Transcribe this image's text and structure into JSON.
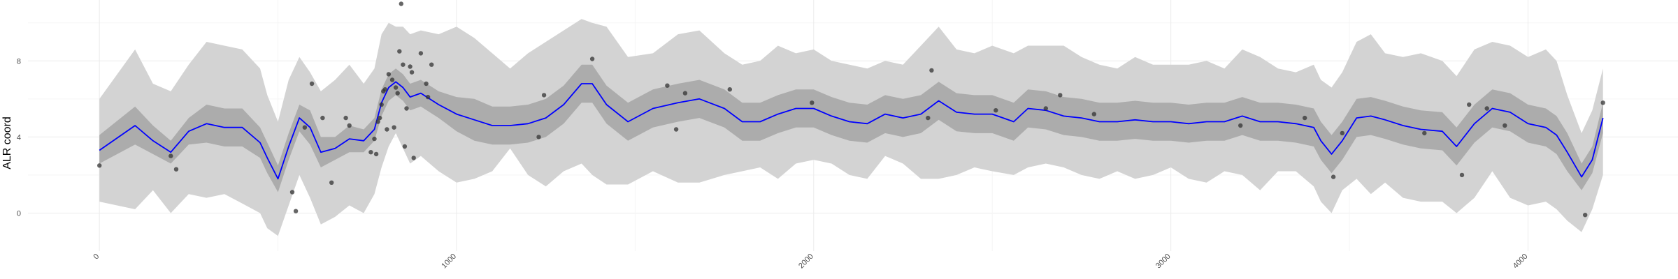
{
  "chart_data": {
    "type": "line",
    "title": "",
    "xlabel": "",
    "ylabel": "ALR coord",
    "xlim": [
      -200,
      4420
    ],
    "ylim": [
      -2.0,
      11.2
    ],
    "x_ticks": [
      0,
      1000,
      2000,
      3000,
      4000
    ],
    "x_tick_labels": [
      "0",
      "1000",
      "2000",
      "3000",
      "4000"
    ],
    "y_ticks": [
      0,
      4,
      8
    ],
    "y_tick_labels": [
      "0",
      "4",
      "8"
    ],
    "grid": true,
    "legend": "none",
    "colors": {
      "mean_line": "#0000ff",
      "inner_band": "#acacac",
      "outer_band": "#d3d3d3",
      "points": "#333333",
      "grid_major": "#ebebeb",
      "grid_minor": "#f5f5f5"
    },
    "series": [
      {
        "kind": "line",
        "x": [
          0,
          100,
          150,
          200,
          250,
          300,
          350,
          400,
          450,
          470,
          500,
          530,
          560,
          590,
          620,
          660,
          700,
          740,
          770,
          790,
          810,
          830,
          850,
          870,
          900,
          950,
          1000,
          1050,
          1100,
          1150,
          1200,
          1250,
          1300,
          1350,
          1380,
          1420,
          1480,
          1550,
          1620,
          1680,
          1750,
          1800,
          1850,
          1900,
          1950,
          2000,
          2050,
          2100,
          2150,
          2200,
          2250,
          2300,
          2350,
          2400,
          2450,
          2500,
          2560,
          2600,
          2650,
          2700,
          2750,
          2800,
          2850,
          2900,
          2950,
          3000,
          3050,
          3100,
          3150,
          3200,
          3250,
          3300,
          3350,
          3400,
          3420,
          3450,
          3480,
          3520,
          3560,
          3600,
          3650,
          3700,
          3760,
          3800,
          3850,
          3900,
          3950,
          4000,
          4050,
          4080,
          4110,
          4150,
          4180,
          4210
        ],
        "y": [
          3.3,
          4.6,
          3.8,
          3.2,
          4.3,
          4.7,
          4.5,
          4.5,
          3.7,
          2.9,
          1.8,
          3.5,
          5.0,
          4.5,
          3.2,
          3.4,
          3.9,
          3.8,
          4.4,
          5.8,
          6.6,
          6.9,
          6.6,
          6.1,
          6.3,
          5.7,
          5.2,
          4.9,
          4.6,
          4.6,
          4.7,
          5.0,
          5.7,
          6.8,
          6.8,
          5.7,
          4.8,
          5.5,
          5.8,
          6.0,
          5.5,
          4.8,
          4.8,
          5.2,
          5.5,
          5.5,
          5.1,
          4.8,
          4.7,
          5.2,
          5.0,
          5.2,
          5.9,
          5.3,
          5.2,
          5.2,
          4.8,
          5.5,
          5.4,
          5.1,
          5.0,
          4.8,
          4.8,
          4.9,
          4.8,
          4.8,
          4.7,
          4.8,
          4.8,
          5.1,
          4.8,
          4.8,
          4.7,
          4.5,
          3.8,
          3.1,
          3.8,
          5.0,
          5.1,
          4.9,
          4.6,
          4.4,
          4.3,
          3.5,
          4.7,
          5.5,
          5.3,
          4.7,
          4.5,
          4.1,
          3.2,
          1.9,
          2.8,
          5.0
        ]
      },
      {
        "kind": "band-inner",
        "x": [
          0,
          100,
          150,
          200,
          250,
          300,
          350,
          400,
          450,
          470,
          500,
          530,
          560,
          590,
          620,
          660,
          700,
          740,
          770,
          790,
          810,
          830,
          850,
          870,
          900,
          950,
          1000,
          1050,
          1100,
          1150,
          1200,
          1250,
          1300,
          1350,
          1380,
          1420,
          1480,
          1550,
          1620,
          1680,
          1750,
          1800,
          1850,
          1900,
          1950,
          2000,
          2050,
          2100,
          2150,
          2200,
          2250,
          2300,
          2350,
          2400,
          2450,
          2500,
          2560,
          2600,
          2650,
          2700,
          2750,
          2800,
          2850,
          2900,
          2950,
          3000,
          3050,
          3100,
          3150,
          3200,
          3250,
          3300,
          3350,
          3400,
          3420,
          3450,
          3480,
          3520,
          3560,
          3600,
          3650,
          3700,
          3760,
          3800,
          3850,
          3900,
          3950,
          4000,
          4050,
          4080,
          4110,
          4150,
          4180,
          4210
        ],
        "lower": [
          2.6,
          3.6,
          3.1,
          2.6,
          3.6,
          3.7,
          3.5,
          3.5,
          2.9,
          2.1,
          1.1,
          2.8,
          4.3,
          3.6,
          2.4,
          2.8,
          3.2,
          3.2,
          3.8,
          5.1,
          5.9,
          6.2,
          5.9,
          5.4,
          5.6,
          5.0,
          4.3,
          3.8,
          3.6,
          3.6,
          3.7,
          4.0,
          4.7,
          5.8,
          5.8,
          4.7,
          3.8,
          4.5,
          4.8,
          5.0,
          4.5,
          3.8,
          3.8,
          4.2,
          4.5,
          4.5,
          4.1,
          3.8,
          3.7,
          4.2,
          4.0,
          4.2,
          4.9,
          4.3,
          4.2,
          4.2,
          3.8,
          4.5,
          4.4,
          4.1,
          4.0,
          3.8,
          3.8,
          3.9,
          3.8,
          3.8,
          3.7,
          3.8,
          3.8,
          4.1,
          3.8,
          3.8,
          3.7,
          3.5,
          2.8,
          2.1,
          2.8,
          4.0,
          4.1,
          3.9,
          3.6,
          3.4,
          3.3,
          2.5,
          3.7,
          4.5,
          4.3,
          3.7,
          3.5,
          3.1,
          2.2,
          1.2,
          2.1,
          4.2
        ],
        "upper": [
          4.1,
          5.6,
          4.6,
          3.8,
          5.0,
          5.7,
          5.5,
          5.5,
          4.5,
          3.7,
          2.5,
          4.2,
          5.7,
          5.4,
          4.0,
          4.0,
          4.6,
          4.4,
          5.0,
          6.5,
          7.3,
          7.6,
          7.3,
          6.8,
          7.0,
          6.4,
          6.1,
          6.0,
          5.6,
          5.6,
          5.7,
          6.0,
          6.7,
          7.8,
          7.8,
          6.7,
          5.8,
          6.5,
          6.8,
          7.0,
          6.5,
          5.8,
          5.8,
          6.2,
          6.5,
          6.5,
          6.1,
          5.8,
          5.7,
          6.2,
          6.0,
          6.2,
          6.9,
          6.3,
          6.2,
          6.2,
          5.8,
          6.5,
          6.4,
          6.1,
          6.0,
          5.8,
          5.8,
          5.9,
          5.8,
          5.8,
          5.7,
          5.8,
          5.8,
          6.1,
          5.8,
          5.8,
          5.7,
          5.5,
          4.8,
          4.1,
          4.8,
          6.0,
          6.1,
          5.9,
          5.6,
          5.4,
          5.3,
          4.5,
          5.7,
          6.5,
          6.3,
          5.7,
          5.5,
          5.1,
          4.2,
          2.6,
          3.5,
          5.8
        ]
      },
      {
        "kind": "band-outer",
        "x": [
          0,
          100,
          150,
          200,
          250,
          300,
          350,
          400,
          450,
          470,
          500,
          530,
          560,
          590,
          620,
          660,
          700,
          740,
          770,
          790,
          810,
          830,
          850,
          870,
          900,
          950,
          1000,
          1050,
          1100,
          1150,
          1200,
          1250,
          1300,
          1350,
          1380,
          1420,
          1480,
          1550,
          1620,
          1680,
          1750,
          1800,
          1850,
          1900,
          1950,
          2000,
          2050,
          2100,
          2150,
          2200,
          2250,
          2300,
          2350,
          2400,
          2450,
          2500,
          2560,
          2600,
          2650,
          2700,
          2750,
          2800,
          2850,
          2900,
          2950,
          3000,
          3050,
          3100,
          3150,
          3200,
          3250,
          3300,
          3350,
          3400,
          3420,
          3450,
          3480,
          3520,
          3560,
          3600,
          3650,
          3700,
          3760,
          3800,
          3850,
          3900,
          3950,
          4000,
          4050,
          4080,
          4110,
          4150,
          4180,
          4210
        ],
        "lower": [
          0.6,
          0.2,
          1.2,
          0.0,
          1.0,
          0.8,
          1.0,
          0.5,
          0.0,
          -0.8,
          -1.2,
          0.4,
          2.0,
          0.8,
          -0.6,
          -0.2,
          0.4,
          0.0,
          1.0,
          2.4,
          3.5,
          4.2,
          3.4,
          2.6,
          3.0,
          2.2,
          1.6,
          1.8,
          2.2,
          3.4,
          2.0,
          1.4,
          2.2,
          2.6,
          2.0,
          1.5,
          1.5,
          2.2,
          1.6,
          1.6,
          2.0,
          2.2,
          2.4,
          1.8,
          2.6,
          2.8,
          2.6,
          2.0,
          1.8,
          3.0,
          2.6,
          1.8,
          1.8,
          2.0,
          2.4,
          2.2,
          2.0,
          2.4,
          2.6,
          2.4,
          2.0,
          1.8,
          2.2,
          1.8,
          2.0,
          2.4,
          1.8,
          1.6,
          2.2,
          2.0,
          1.2,
          2.2,
          2.2,
          1.4,
          0.6,
          0.0,
          1.2,
          1.8,
          1.0,
          1.6,
          0.8,
          0.6,
          0.6,
          0.0,
          0.8,
          2.2,
          0.8,
          0.4,
          0.6,
          0.2,
          -0.4,
          -1.0,
          0.2,
          2.0
        ],
        "upper": [
          6.0,
          8.6,
          6.8,
          6.4,
          7.8,
          9.0,
          8.8,
          8.6,
          7.6,
          6.2,
          4.8,
          7.0,
          8.2,
          7.4,
          6.4,
          7.0,
          7.8,
          6.8,
          7.6,
          9.4,
          10.0,
          9.8,
          9.8,
          9.4,
          9.6,
          9.4,
          9.8,
          9.2,
          8.4,
          7.6,
          8.4,
          9.0,
          9.6,
          10.2,
          10.0,
          9.8,
          8.2,
          8.4,
          9.4,
          9.6,
          8.4,
          7.8,
          8.0,
          8.8,
          8.4,
          8.6,
          8.0,
          7.8,
          7.6,
          8.0,
          7.8,
          8.8,
          9.8,
          8.6,
          8.4,
          8.8,
          8.4,
          8.8,
          8.8,
          8.8,
          8.2,
          7.8,
          7.6,
          8.2,
          7.8,
          7.8,
          7.8,
          8.0,
          7.6,
          8.6,
          8.2,
          7.6,
          7.4,
          7.8,
          7.0,
          6.6,
          7.4,
          9.0,
          9.4,
          8.4,
          8.2,
          8.4,
          8.0,
          7.2,
          8.6,
          9.0,
          8.8,
          8.2,
          8.6,
          8.0,
          6.2,
          4.2,
          5.4,
          7.6
        ]
      },
      {
        "kind": "points",
        "x": [
          0,
          200,
          215,
          540,
          550,
          575,
          595,
          625,
          650,
          690,
          700,
          760,
          770,
          775,
          780,
          785,
          790,
          795,
          800,
          805,
          810,
          820,
          825,
          830,
          835,
          840,
          845,
          850,
          855,
          860,
          870,
          875,
          880,
          900,
          915,
          920,
          930,
          1230,
          1245,
          1380,
          1590,
          1615,
          1640,
          1765,
          1995,
          2320,
          2330,
          2510,
          2650,
          2690,
          2785,
          3195,
          3375,
          3455,
          3480,
          3710,
          3815,
          3835,
          3885,
          3935,
          4160,
          4210
        ],
        "y": [
          2.5,
          3.0,
          2.3,
          1.1,
          0.1,
          4.5,
          6.8,
          5.0,
          1.6,
          5.0,
          4.6,
          3.2,
          3.9,
          3.1,
          4.8,
          5.0,
          5.7,
          6.4,
          6.5,
          4.4,
          7.3,
          7.0,
          4.5,
          6.6,
          6.3,
          8.5,
          11.0,
          7.8,
          3.5,
          5.5,
          7.7,
          7.4,
          2.9,
          8.4,
          6.8,
          6.1,
          7.8,
          4.0,
          6.2,
          8.1,
          6.7,
          4.4,
          6.3,
          6.5,
          5.8,
          5.0,
          7.5,
          5.4,
          5.5,
          6.2,
          5.2,
          4.6,
          5.0,
          1.9,
          4.2,
          4.2,
          2.0,
          5.7,
          5.5,
          4.6,
          -0.1,
          5.8
        ]
      }
    ]
  }
}
